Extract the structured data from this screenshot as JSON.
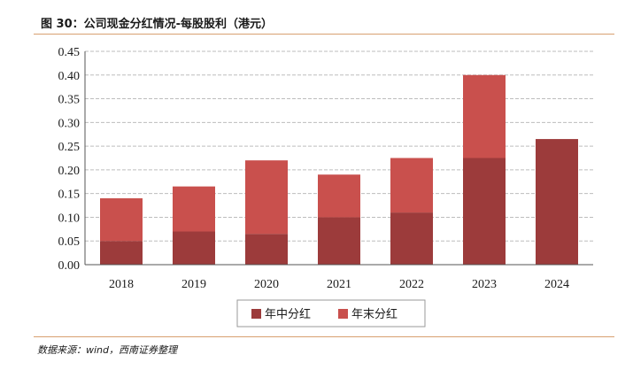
{
  "figure": {
    "title": "图 30：公司现金分红情况-每股股利（港元）",
    "source": "数据来源：wind，西南证券整理"
  },
  "colors": {
    "interim": "#9c3b3b",
    "final": "#c9504d",
    "grid": "#bdbdbd",
    "axis": "#555555",
    "rule": "#d8a070"
  },
  "chart_data": {
    "type": "bar",
    "stacked": true,
    "categories": [
      "2018",
      "2019",
      "2020",
      "2021",
      "2022",
      "2023",
      "2024"
    ],
    "series": [
      {
        "name": "年中分红",
        "values": [
          0.05,
          0.07,
          0.065,
          0.1,
          0.11,
          0.225,
          0.265
        ]
      },
      {
        "name": "年末分红",
        "values": [
          0.09,
          0.095,
          0.155,
          0.09,
          0.115,
          0.175,
          0
        ]
      }
    ],
    "ylim": [
      0,
      0.45
    ],
    "yticks": [
      "0.00",
      "0.05",
      "0.10",
      "0.15",
      "0.20",
      "0.25",
      "0.30",
      "0.35",
      "0.40",
      "0.45"
    ],
    "grid": true,
    "legend_position": "bottom-center"
  }
}
